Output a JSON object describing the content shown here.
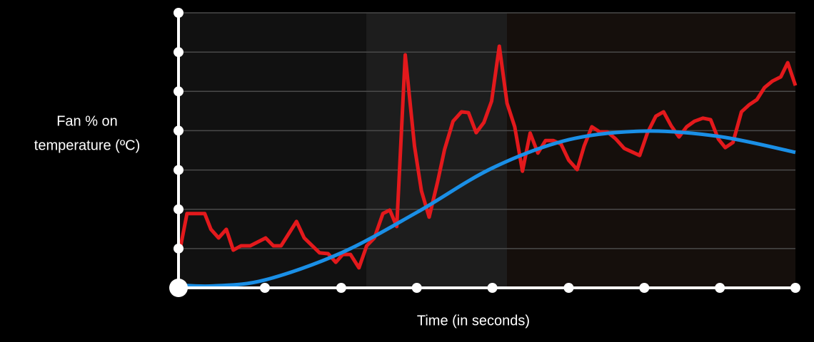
{
  "chart_data": {
    "type": "line",
    "ylabel": [
      "Fan % on",
      "temperature (ºC)"
    ],
    "xlabel": "Time (in seconds)",
    "xlim": [
      0,
      8
    ],
    "xticks": [
      0,
      1.12,
      2.11,
      3.09,
      4.07,
      5.06,
      6.04,
      7.02,
      8
    ],
    "ylim": [
      0,
      7
    ],
    "yticks": [
      0,
      1,
      2,
      3,
      4,
      5,
      6,
      7
    ],
    "grid": true,
    "series": [
      {
        "color": "#e3191c",
        "smooth": false,
        "x": [
          0.02,
          0.11,
          0.34,
          0.42,
          0.52,
          0.62,
          0.71,
          0.81,
          0.93,
          1.13,
          1.23,
          1.33,
          1.53,
          1.63,
          1.83,
          1.94,
          2.04,
          2.13,
          2.23,
          2.34,
          2.44,
          2.54,
          2.65,
          2.74,
          2.83,
          2.94,
          3.06,
          3.15,
          3.25,
          3.36,
          3.45,
          3.56,
          3.67,
          3.76,
          3.86,
          3.96,
          4.06,
          4.16,
          4.26,
          4.36,
          4.46,
          4.56,
          4.66,
          4.76,
          4.86,
          4.96,
          5.06,
          5.17,
          5.26,
          5.36,
          5.46,
          5.56,
          5.67,
          5.78,
          5.88,
          5.98,
          6.08,
          6.19,
          6.29,
          6.39,
          6.49,
          6.59,
          6.69,
          6.8,
          6.9,
          7.0,
          7.09,
          7.19,
          7.3,
          7.4,
          7.5,
          7.6,
          7.7,
          7.81,
          7.9,
          8.0
        ],
        "values": [
          0.98,
          1.89,
          1.89,
          1.49,
          1.27,
          1.49,
          0.96,
          1.07,
          1.07,
          1.27,
          1.07,
          1.07,
          1.69,
          1.27,
          0.89,
          0.87,
          0.65,
          0.85,
          0.85,
          0.51,
          1.07,
          1.27,
          1.89,
          1.98,
          1.56,
          5.93,
          3.61,
          2.47,
          1.8,
          2.7,
          3.52,
          4.24,
          4.48,
          4.46,
          3.95,
          4.21,
          4.75,
          6.15,
          4.7,
          4.1,
          2.97,
          3.94,
          3.43,
          3.75,
          3.75,
          3.66,
          3.25,
          3.01,
          3.61,
          4.1,
          3.97,
          3.97,
          3.79,
          3.55,
          3.46,
          3.37,
          3.94,
          4.37,
          4.48,
          4.12,
          3.84,
          4.1,
          4.24,
          4.32,
          4.28,
          3.79,
          3.57,
          3.7,
          4.48,
          4.66,
          4.79,
          5.1,
          5.26,
          5.37,
          5.73,
          5.15
        ]
      },
      {
        "color": "#1a8fe6",
        "smooth": true,
        "x": [
          0,
          0.46,
          1.12,
          2.11,
          3.09,
          4.07,
          5.06,
          6.04,
          7.02,
          8
        ],
        "values": [
          0.07,
          0.05,
          0.2,
          0.89,
          1.92,
          3.05,
          3.77,
          3.99,
          3.85,
          3.45
        ]
      }
    ]
  }
}
